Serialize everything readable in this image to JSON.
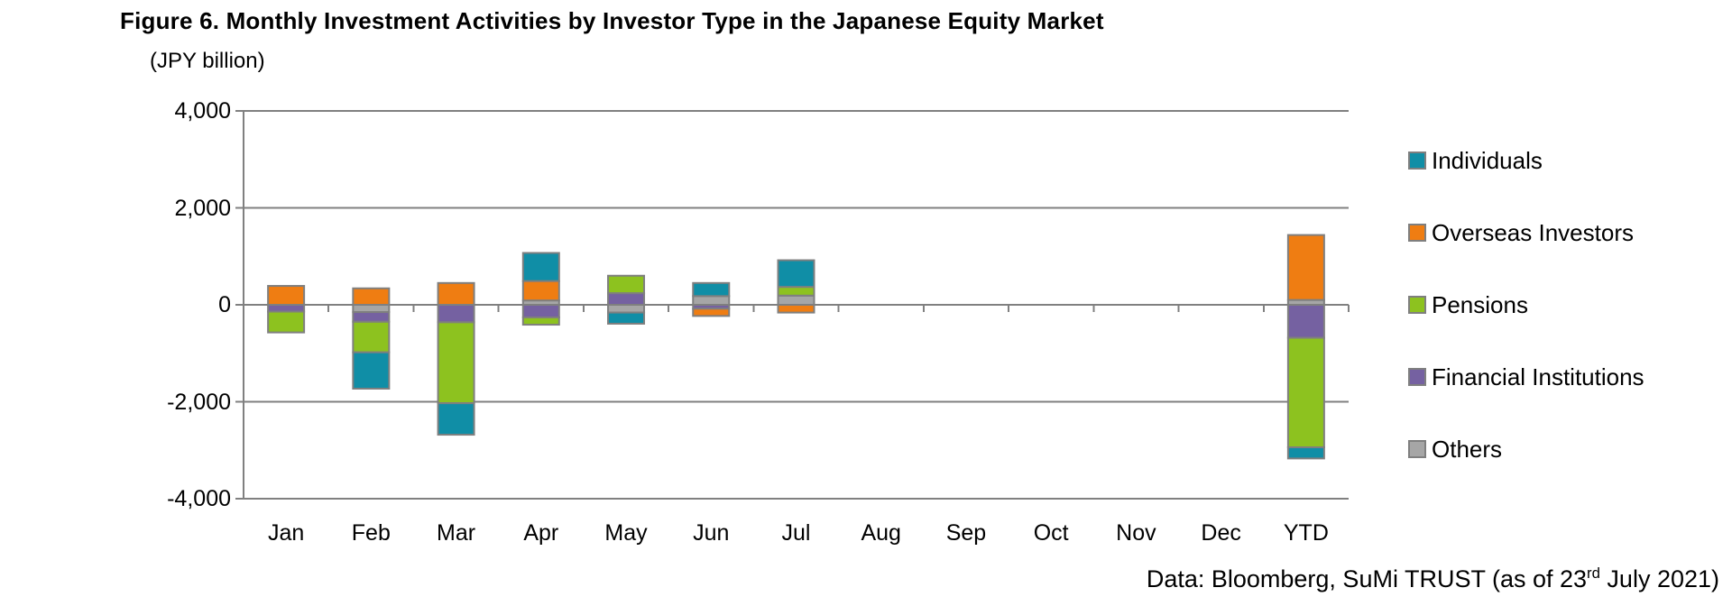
{
  "chart_data": {
    "type": "bar",
    "stacked": true,
    "title": "Figure 6. Monthly Investment Activities by Investor Type in the Japanese Equity Market",
    "categories": [
      "Jan",
      "Feb",
      "Mar",
      "Apr",
      "May",
      "Jun",
      "Jul",
      "Aug",
      "Sep",
      "Oct",
      "Nov",
      "Dec",
      "YTD"
    ],
    "series": [
      {
        "name": "Individuals",
        "color": "#108EA6",
        "values": [
          0,
          -750,
          -650,
          580,
          -230,
          270,
          550,
          0,
          0,
          0,
          0,
          0,
          -230
        ]
      },
      {
        "name": "Overseas Investors",
        "color": "#EF7D12",
        "values": [
          390,
          340,
          450,
          400,
          0,
          -150,
          -160,
          0,
          0,
          0,
          0,
          0,
          1340
        ]
      },
      {
        "name": "Pensions",
        "color": "#8DC21F",
        "values": [
          -430,
          -630,
          -1670,
          -150,
          360,
          0,
          180,
          0,
          0,
          0,
          0,
          0,
          -2260
        ]
      },
      {
        "name": "Financial Institutions",
        "color": "#7561A1",
        "values": [
          -140,
          -200,
          -360,
          -260,
          240,
          -80,
          0,
          0,
          0,
          0,
          0,
          0,
          -680
        ]
      },
      {
        "name": "Others",
        "color": "#A6A6A6",
        "values": [
          0,
          -150,
          0,
          90,
          -160,
          180,
          190,
          0,
          0,
          0,
          0,
          0,
          100
        ]
      }
    ],
    "stack_order_from_zero": [
      "Others",
      "Financial Institutions",
      "Pensions",
      "Overseas Investors",
      "Individuals"
    ],
    "y_axis": {
      "unit": "(JPY billion)",
      "range": [
        -4000,
        4000
      ],
      "tick_values": [
        4000,
        2000,
        0,
        -2000,
        -4000
      ],
      "tick_labels": [
        "4,000",
        "2,000",
        "0",
        "-2,000",
        "-4,000"
      ]
    },
    "grid": true,
    "legend_position": "right",
    "bar_border_color": "#7F7F7F",
    "gridline_color": "#808080",
    "source_note": {
      "text": "Data: Bloomberg, SuMi TRUST (as of 23rd July 2021)",
      "prefix": "Data: Bloomberg, SuMi TRUST (as of 23",
      "superscript": "rd",
      "suffix": " July 2021)"
    }
  }
}
